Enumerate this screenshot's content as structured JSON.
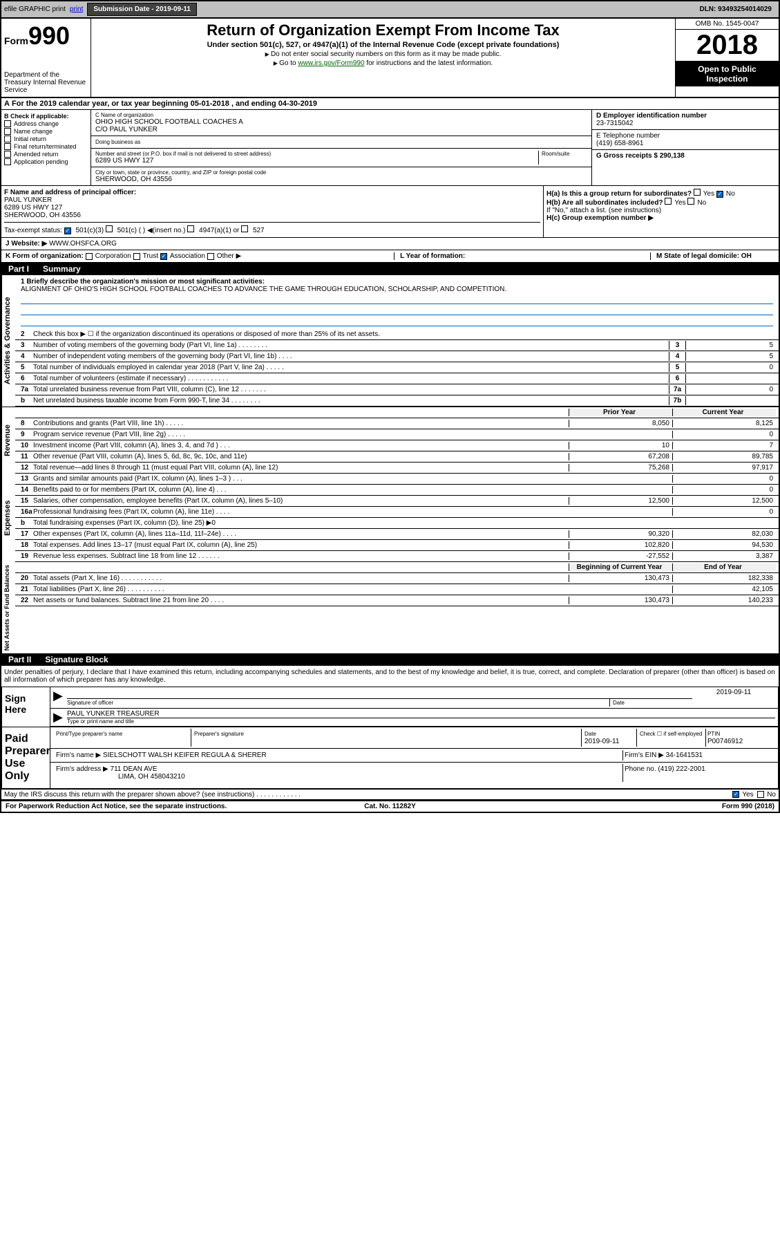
{
  "top": {
    "efile": "efile GRAPHIC print",
    "sub_label": "Submission Date - 2019-09-11",
    "dln": "DLN: 93493254014029"
  },
  "header": {
    "form_label": "Form",
    "form_no": "990",
    "title": "Return of Organization Exempt From Income Tax",
    "subtitle": "Under section 501(c), 527, or 4947(a)(1) of the Internal Revenue Code (except private foundations)",
    "instr1": "Do not enter social security numbers on this form as it may be made public.",
    "instr2_pre": "Go to ",
    "instr2_link": "www.irs.gov/Form990",
    "instr2_post": " for instructions and the latest information.",
    "omb": "OMB No. 1545-0047",
    "year": "2018",
    "open": "Open to Public Inspection",
    "dept": "Department of the Treasury Internal Revenue Service"
  },
  "period": "For the 2019 calendar year, or tax year beginning 05-01-2018    , and ending 04-30-2019",
  "sectionB": {
    "b_label": "B Check if applicable:",
    "checks": [
      "Address change",
      "Name change",
      "Initial return",
      "Final return/terminated",
      "Amended return",
      "Application pending"
    ],
    "c_label": "C Name of organization",
    "org_name": "OHIO HIGH SCHOOL FOOTBALL COACHES A",
    "co": "C/O PAUL YUNKER",
    "dba_label": "Doing business as",
    "addr_label": "Number and street (or P.O. box if mail is not delivered to street address)",
    "room_label": "Room/suite",
    "addr": "6289 US HWY 127",
    "city_label": "City or town, state or province, country, and ZIP or foreign postal code",
    "city": "SHERWOOD, OH  43556",
    "d_label": "D Employer identification number",
    "ein": "23-7315042",
    "e_label": "E Telephone number",
    "phone": "(419) 658-8961",
    "g_label": "G Gross receipts $ 290,138",
    "f_label": "F  Name and address of principal officer:",
    "officer_name": "PAUL YUNKER",
    "officer_addr1": "6289 US HWY 127",
    "officer_addr2": "SHERWOOD, OH  43556",
    "ha_label": "H(a)  Is this a group return for subordinates?",
    "hb_label": "H(b)  Are all subordinates included?",
    "hb_note": "If \"No,\" attach a list. (see instructions)",
    "hc_label": "H(c)  Group exemption number ▶",
    "yes": "Yes",
    "no": "No"
  },
  "tax_status": {
    "label": "Tax-exempt status:",
    "opts": [
      "501(c)(3)",
      "501(c) (  ) ◀(insert no.)",
      "4947(a)(1) or",
      "527"
    ]
  },
  "website": {
    "label": "J   Website: ▶",
    "url": "WWW.OHSFCA.ORG"
  },
  "rowK": {
    "k_label": "K Form of organization:",
    "opts": [
      "Corporation",
      "Trust",
      "Association",
      "Other ▶"
    ],
    "l_label": "L Year of formation:",
    "m_label": "M State of legal domicile: OH"
  },
  "part1": {
    "label": "Part I",
    "title": "Summary"
  },
  "mission": {
    "q": "1  Briefly describe the organization's mission or most significant activities:",
    "text": "ALIGNMENT OF OHIO'S HIGH SCHOOL FOOTBALL COACHES TO ADVANCE THE GAME THROUGH EDUCATION, SCHOLARSHIP, AND COMPETITION."
  },
  "gov_lines": [
    {
      "n": "2",
      "t": "Check this box ▶ ☐  if the organization discontinued its operations or disposed of more than 25% of its net assets."
    },
    {
      "n": "3",
      "t": "Number of voting members of the governing body (Part VI, line 1a)   .    .    .    .    .    .    .    .",
      "box": "3",
      "v": "5"
    },
    {
      "n": "4",
      "t": "Number of independent voting members of the governing body (Part VI, line 1b)   .    .    .    .",
      "box": "4",
      "v": "5"
    },
    {
      "n": "5",
      "t": "Total number of individuals employed in calendar year 2018 (Part V, line 2a)   .    .    .    .    .",
      "box": "5",
      "v": "0"
    },
    {
      "n": "6",
      "t": "Total number of volunteers (estimate if necessary)    .    .    .    .    .    .    .    .    .    .    .",
      "box": "6",
      "v": ""
    },
    {
      "n": "7a",
      "t": "Total unrelated business revenue from Part VIII, column (C), line 12   .    .    .    .    .    .    .",
      "box": "7a",
      "v": "0"
    },
    {
      "n": "b",
      "t": "Net unrelated business taxable income from Form 990-T, line 34   .    .    .    .    .    .    .    .",
      "box": "7b",
      "v": ""
    }
  ],
  "headers": {
    "py": "Prior Year",
    "cy": "Current Year",
    "bcy": "Beginning of Current Year",
    "eoy": "End of Year"
  },
  "rev_lines": [
    {
      "n": "8",
      "t": "Contributions and grants (Part VIII, line 1h)    .    .    .    .    .",
      "py": "8,050",
      "cy": "8,125"
    },
    {
      "n": "9",
      "t": "Program service revenue (Part VIII, line 2g)    .    .    .    .    .",
      "py": "",
      "cy": "0"
    },
    {
      "n": "10",
      "t": "Investment income (Part VIII, column (A), lines 3, 4, and 7d )    .    .    .",
      "py": "10",
      "cy": "7"
    },
    {
      "n": "11",
      "t": "Other revenue (Part VIII, column (A), lines 5, 6d, 8c, 9c, 10c, and 11e)",
      "py": "67,208",
      "cy": "89,785"
    },
    {
      "n": "12",
      "t": "Total revenue—add lines 8 through 11 (must equal Part VIII, column (A), line 12)",
      "py": "75,268",
      "cy": "97,917"
    }
  ],
  "exp_lines": [
    {
      "n": "13",
      "t": "Grants and similar amounts paid (Part IX, column (A), lines 1–3 )   .    .    .",
      "py": "",
      "cy": "0"
    },
    {
      "n": "14",
      "t": "Benefits paid to or for members (Part IX, column (A), line 4)    .    .    .",
      "py": "",
      "cy": "0"
    },
    {
      "n": "15",
      "t": "Salaries, other compensation, employee benefits (Part IX, column (A), lines 5–10)",
      "py": "12,500",
      "cy": "12,500"
    },
    {
      "n": "16a",
      "t": "Professional fundraising fees (Part IX, column (A), line 11e)   .    .    .    .",
      "py": "",
      "cy": "0"
    },
    {
      "n": "b",
      "t": "Total fundraising expenses (Part IX, column (D), line 25) ▶0",
      "py": "shaded",
      "cy": "shaded"
    },
    {
      "n": "17",
      "t": "Other expenses (Part IX, column (A), lines 11a–11d, 11f–24e)   .    .    .    .",
      "py": "90,320",
      "cy": "82,030"
    },
    {
      "n": "18",
      "t": "Total expenses. Add lines 13–17 (must equal Part IX, column (A), line 25)",
      "py": "102,820",
      "cy": "94,530"
    },
    {
      "n": "19",
      "t": "Revenue less expenses. Subtract line 18 from line 12   .    .    .    .    .    .",
      "py": "-27,552",
      "cy": "3,387"
    }
  ],
  "na_lines": [
    {
      "n": "20",
      "t": "Total assets (Part X, line 16)   .    .    .    .    .    .    .    .    .    .    .",
      "py": "130,473",
      "cy": "182,338"
    },
    {
      "n": "21",
      "t": "Total liabilities (Part X, line 26)   .    .    .    .    .    .    .    .    .    .",
      "py": "",
      "cy": "42,105"
    },
    {
      "n": "22",
      "t": "Net assets or fund balances. Subtract line 21 from line 20    .    .    .    .",
      "py": "130,473",
      "cy": "140,233"
    }
  ],
  "part2": {
    "label": "Part II",
    "title": "Signature Block"
  },
  "sig": {
    "decl": "Under penalties of perjury, I declare that I have examined this return, including accompanying schedules and statements, and to the best of my knowledge and belief, it is true, correct, and complete. Declaration of preparer (other than officer) is based on all information of which preparer has any knowledge.",
    "sign_here": "Sign Here",
    "sig_officer": "Signature of officer",
    "date": "Date",
    "date_val": "2019-09-11",
    "name_title": "PAUL YUNKER  TREASURER",
    "type_label": "Type or print name and title",
    "paid": "Paid Preparer Use Only",
    "prep_name_label": "Print/Type preparer's name",
    "prep_sig_label": "Preparer's signature",
    "prep_date": "2019-09-11",
    "check_self": "Check ☐ if self-employed",
    "ptin_label": "PTIN",
    "ptin": "P00746912",
    "firm_name_label": "Firm's name    ▶",
    "firm_name": "SIELSCHOTT WALSH KEIFER REGULA & SHERER",
    "firm_ein_label": "Firm's EIN ▶",
    "firm_ein": "34-1641531",
    "firm_addr_label": "Firm's address ▶",
    "firm_addr1": "711 DEAN AVE",
    "firm_addr2": "LIMA, OH  458043210",
    "phone_label": "Phone no.",
    "phone": "(419) 222-2001",
    "discuss": "May the IRS discuss this return with the preparer shown above? (see instructions)    .    .    .    .    .    .    .    .    .    .    .    ."
  },
  "footer": {
    "notice": "For Paperwork Reduction Act Notice, see the separate instructions.",
    "cat": "Cat. No. 11282Y",
    "form": "Form 990 (2018)"
  },
  "vert": {
    "gov": "Activities & Governance",
    "rev": "Revenue",
    "exp": "Expenses",
    "na": "Net Assets or Fund Balances"
  }
}
